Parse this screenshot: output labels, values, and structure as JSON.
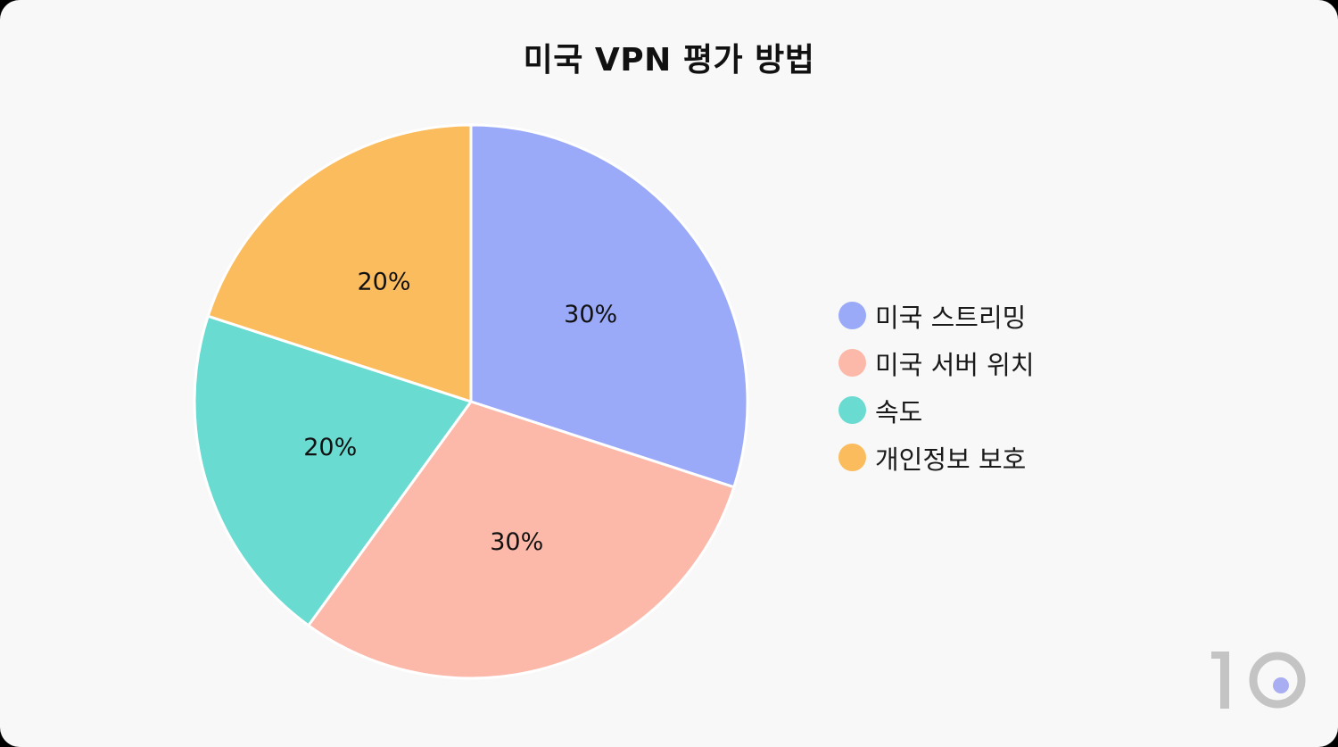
{
  "chart_data": {
    "type": "pie",
    "title": "미국 VPN 평가 방법",
    "slices": [
      {
        "label": "미국 스트리밍",
        "value": 30,
        "display": "30%",
        "color": "#9aaaf8"
      },
      {
        "label": "미국 서버 위치",
        "value": 30,
        "display": "30%",
        "color": "#fcb9aa"
      },
      {
        "label": "속도",
        "value": 20,
        "display": "20%",
        "color": "#69dbd1"
      },
      {
        "label": "개인정보 보호",
        "value": 20,
        "display": "20%",
        "color": "#fbbc5e"
      }
    ],
    "legend_position": "right",
    "start_angle": "12 o'clock",
    "direction": "clockwise"
  },
  "brand": {
    "logo_text": "10",
    "logo_color": "#c4c4c4",
    "accent_color": "#a9aef2"
  }
}
